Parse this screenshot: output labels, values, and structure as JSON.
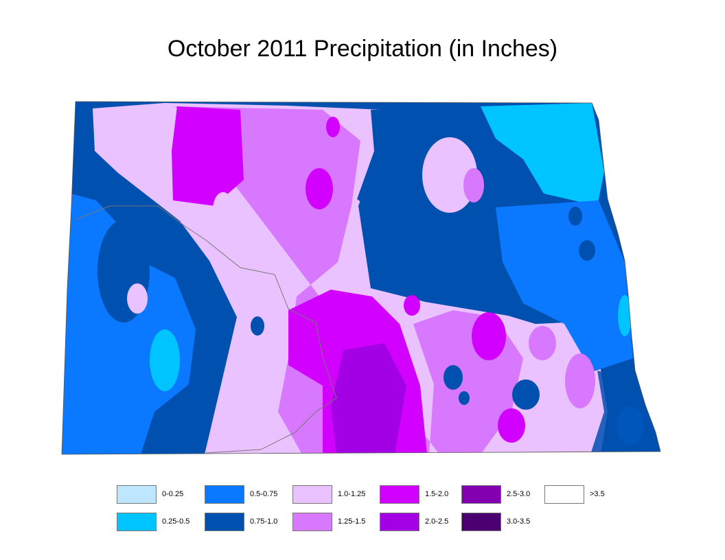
{
  "title": "October 2011 Precipitation (in Inches)",
  "legend": {
    "items": [
      {
        "label": "0-0.25",
        "color": "#bfe6ff"
      },
      {
        "label": "0.25-0.5",
        "color": "#00c4ff"
      },
      {
        "label": "0.5-0.75",
        "color": "#0a78ff"
      },
      {
        "label": "0.75-1.0",
        "color": "#0050b0"
      },
      {
        "label": "1.0-1.25",
        "color": "#e9c2ff"
      },
      {
        "label": "1.25-1.5",
        "color": "#d878ff"
      },
      {
        "label": "1.5-2.0",
        "color": "#d200ff"
      },
      {
        "label": "2.0-2.5",
        "color": "#a400e6"
      },
      {
        "label": "2.5-3.0",
        "color": "#8200b0"
      },
      {
        "label": "3.0-3.5",
        "color": "#4a0070"
      },
      {
        "label": ">3.5",
        "color": "#ffffff"
      }
    ]
  }
}
